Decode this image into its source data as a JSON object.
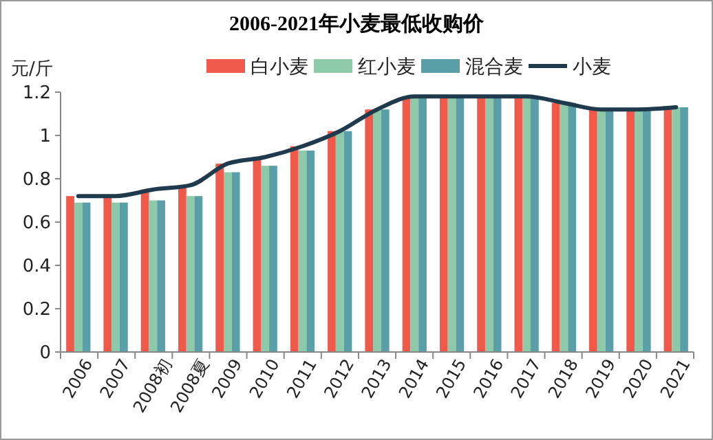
{
  "chart_data": {
    "type": "bar",
    "title": "2006-2021年小麦最低收购价",
    "ylabel": "元/斤",
    "categories": [
      "2006",
      "2007",
      "2008初",
      "2008夏",
      "2009",
      "2010",
      "2011",
      "2012",
      "2013",
      "2014",
      "2015",
      "2016",
      "2017",
      "2018",
      "2019",
      "2020",
      "2021"
    ],
    "series": [
      {
        "name": "白小麦",
        "color": "#f05a4a",
        "values": [
          0.72,
          0.72,
          0.75,
          0.77,
          0.87,
          0.9,
          0.95,
          1.02,
          1.12,
          1.18,
          1.18,
          1.18,
          1.18,
          1.15,
          1.12,
          1.12,
          1.13
        ]
      },
      {
        "name": "红小麦",
        "color": "#8ec9a9",
        "values": [
          0.69,
          0.69,
          0.7,
          0.72,
          0.83,
          0.86,
          0.93,
          1.02,
          1.12,
          1.18,
          1.18,
          1.18,
          1.18,
          1.15,
          1.12,
          1.12,
          1.13
        ]
      },
      {
        "name": "混合麦",
        "color": "#5a9fa8",
        "values": [
          0.69,
          0.69,
          0.7,
          0.72,
          0.83,
          0.86,
          0.93,
          1.02,
          1.12,
          1.18,
          1.18,
          1.18,
          1.18,
          1.15,
          1.12,
          1.12,
          1.13
        ]
      },
      {
        "name": "小麦",
        "type": "line",
        "color": "#1f3a4d",
        "values": [
          0.72,
          0.72,
          0.75,
          0.77,
          0.87,
          0.9,
          0.95,
          1.02,
          1.12,
          1.18,
          1.18,
          1.18,
          1.18,
          1.15,
          1.12,
          1.12,
          1.13
        ]
      }
    ],
    "ylim": [
      0,
      1.2
    ],
    "yticks": [
      0,
      0.2,
      0.4,
      0.6,
      0.8,
      1,
      1.2
    ],
    "grid": false,
    "legend": "top"
  }
}
